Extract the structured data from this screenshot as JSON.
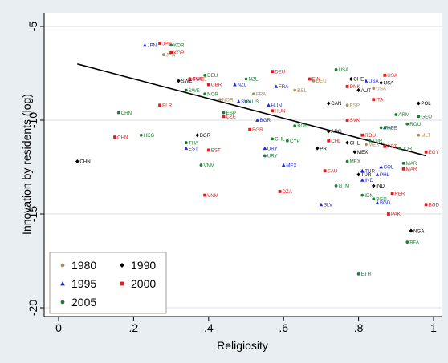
{
  "chart_data": {
    "type": "scatter",
    "xlabel": "Religiosity",
    "ylabel": "Innovation by residents (log)",
    "xlim": [
      0,
      1
    ],
    "ylim": [
      -20,
      -5
    ],
    "xticks": [
      0,
      0.2,
      0.4,
      0.6,
      0.8,
      1
    ],
    "xtick_labels": [
      "0",
      ".2",
      ".4",
      ".6",
      ".8",
      "1"
    ],
    "yticks": [
      -5,
      -10,
      -15,
      -20
    ],
    "ytick_labels": [
      "-5",
      "-10",
      "-15",
      "-20"
    ],
    "grid": "horizontal",
    "legend_position": "bottom-left",
    "fit_line": {
      "x": [
        0.05,
        0.98
      ],
      "y": [
        -7.0,
        -11.9
      ]
    },
    "series": [
      {
        "name": "1980",
        "color": "#a89060",
        "marker": "dot",
        "points": [
          {
            "label": "JPN",
            "x": 0.28,
            "y": -6.5
          },
          {
            "label": "CHE",
            "x": 0.36,
            "y": -7.8
          },
          {
            "label": "NOR",
            "x": 0.43,
            "y": -8.9
          },
          {
            "label": "DEU",
            "x": 0.68,
            "y": -7.9
          },
          {
            "label": "FRA",
            "x": 0.52,
            "y": -8.6
          },
          {
            "label": "USA",
            "x": 0.84,
            "y": -8.3
          },
          {
            "label": "MEX",
            "x": 0.82,
            "y": -11.3
          },
          {
            "label": "MLT",
            "x": 0.96,
            "y": -10.8
          },
          {
            "label": "ESP",
            "x": 0.77,
            "y": -9.2
          },
          {
            "label": "BEL",
            "x": 0.63,
            "y": -8.4
          }
        ]
      },
      {
        "name": "1990",
        "color": "#000000",
        "marker": "diamond",
        "points": [
          {
            "label": "CHN",
            "x": 0.05,
            "y": -12.2
          },
          {
            "label": "SWE",
            "x": 0.32,
            "y": -7.9
          },
          {
            "label": "BGR",
            "x": 0.37,
            "y": -10.8
          },
          {
            "label": "CHE",
            "x": 0.78,
            "y": -7.8
          },
          {
            "label": "USA",
            "x": 0.86,
            "y": -8.0
          },
          {
            "label": "CAN",
            "x": 0.72,
            "y": -9.1
          },
          {
            "label": "AUT",
            "x": 0.8,
            "y": -8.4
          },
          {
            "label": "ARG",
            "x": 0.72,
            "y": -10.6
          },
          {
            "label": "PRT",
            "x": 0.69,
            "y": -11.5
          },
          {
            "label": "POL",
            "x": 0.96,
            "y": -9.1
          },
          {
            "label": "TUR",
            "x": 0.8,
            "y": -12.9
          },
          {
            "label": "IND",
            "x": 0.84,
            "y": -13.5
          },
          {
            "label": "NGA",
            "x": 0.94,
            "y": -15.9
          },
          {
            "label": "CHL",
            "x": 0.77,
            "y": -11.2
          },
          {
            "label": "MEX",
            "x": 0.79,
            "y": -11.7
          }
        ]
      },
      {
        "name": "1995",
        "color": "#1f2bd8",
        "marker": "triangle",
        "points": [
          {
            "label": "JPN",
            "x": 0.23,
            "y": -6.0
          },
          {
            "label": "EST",
            "x": 0.34,
            "y": -11.5
          },
          {
            "label": "SWE",
            "x": 0.35,
            "y": -7.8
          },
          {
            "label": "NZL",
            "x": 0.47,
            "y": -8.1
          },
          {
            "label": "SVN",
            "x": 0.48,
            "y": -9.0
          },
          {
            "label": "BGR",
            "x": 0.53,
            "y": -10.0
          },
          {
            "label": "URY",
            "x": 0.55,
            "y": -11.5
          },
          {
            "label": "HUN",
            "x": 0.56,
            "y": -9.2
          },
          {
            "label": "FRA",
            "x": 0.58,
            "y": -8.2
          },
          {
            "label": "MEX",
            "x": 0.6,
            "y": -12.4
          },
          {
            "label": "USA",
            "x": 0.82,
            "y": -7.9
          },
          {
            "label": "TUR",
            "x": 0.81,
            "y": -12.7
          },
          {
            "label": "PHL",
            "x": 0.85,
            "y": -12.9
          },
          {
            "label": "COL",
            "x": 0.86,
            "y": -12.5
          },
          {
            "label": "SLV",
            "x": 0.7,
            "y": -14.5
          },
          {
            "label": "BGD",
            "x": 0.85,
            "y": -14.4
          },
          {
            "label": "AZE",
            "x": 0.87,
            "y": -10.4
          },
          {
            "label": "IND",
            "x": 0.81,
            "y": -13.2
          }
        ]
      },
      {
        "name": "2000",
        "color": "#e01b1b",
        "marker": "square",
        "points": [
          {
            "label": "CHN",
            "x": 0.15,
            "y": -10.9
          },
          {
            "label": "JPN",
            "x": 0.27,
            "y": -5.9
          },
          {
            "label": "KOR",
            "x": 0.3,
            "y": -6.4
          },
          {
            "label": "BLR",
            "x": 0.27,
            "y": -9.2
          },
          {
            "label": "SWE",
            "x": 0.35,
            "y": -7.8
          },
          {
            "label": "EST",
            "x": 0.4,
            "y": -11.6
          },
          {
            "label": "VNM",
            "x": 0.39,
            "y": -14.0
          },
          {
            "label": "GBR",
            "x": 0.4,
            "y": -8.1
          },
          {
            "label": "CZE",
            "x": 0.44,
            "y": -9.8
          },
          {
            "label": "BGR",
            "x": 0.51,
            "y": -10.5
          },
          {
            "label": "DEU",
            "x": 0.57,
            "y": -7.4
          },
          {
            "label": "HUN",
            "x": 0.57,
            "y": -9.5
          },
          {
            "label": "DZA",
            "x": 0.59,
            "y": -13.8
          },
          {
            "label": "FIN",
            "x": 0.67,
            "y": -7.8
          },
          {
            "label": "SAU",
            "x": 0.71,
            "y": -12.7
          },
          {
            "label": "CHL",
            "x": 0.72,
            "y": -11.1
          },
          {
            "label": "USA",
            "x": 0.87,
            "y": -7.6
          },
          {
            "label": "DNK",
            "x": 0.77,
            "y": -8.2
          },
          {
            "label": "ITA",
            "x": 0.84,
            "y": -8.9
          },
          {
            "label": "SVK",
            "x": 0.77,
            "y": -10.0
          },
          {
            "label": "PER",
            "x": 0.89,
            "y": -13.9
          },
          {
            "label": "PAK",
            "x": 0.88,
            "y": -15.0
          },
          {
            "label": "MAR",
            "x": 0.92,
            "y": -12.6
          },
          {
            "label": "PRT",
            "x": 0.87,
            "y": -11.4
          },
          {
            "label": "BGD",
            "x": 0.98,
            "y": -14.5
          },
          {
            "label": "EGY",
            "x": 0.98,
            "y": -11.7
          },
          {
            "label": "ROU",
            "x": 0.81,
            "y": -10.8
          }
        ]
      },
      {
        "name": "2005",
        "color": "#1a7f32",
        "marker": "dot",
        "points": [
          {
            "label": "KOR",
            "x": 0.3,
            "y": -6.0
          },
          {
            "label": "CHN",
            "x": 0.16,
            "y": -9.6
          },
          {
            "label": "HKG",
            "x": 0.22,
            "y": -10.8
          },
          {
            "label": "THA",
            "x": 0.34,
            "y": -11.2
          },
          {
            "label": "SWE",
            "x": 0.34,
            "y": -8.4
          },
          {
            "label": "DEU",
            "x": 0.39,
            "y": -7.6
          },
          {
            "label": "NOR",
            "x": 0.39,
            "y": -8.6
          },
          {
            "label": "VNM",
            "x": 0.38,
            "y": -12.4
          },
          {
            "label": "ESP",
            "x": 0.44,
            "y": -9.6
          },
          {
            "label": "NZL",
            "x": 0.5,
            "y": -7.8
          },
          {
            "label": "AUS",
            "x": 0.5,
            "y": -9.0
          },
          {
            "label": "URY",
            "x": 0.55,
            "y": -11.9
          },
          {
            "label": "CHL",
            "x": 0.57,
            "y": -11.0
          },
          {
            "label": "BGR",
            "x": 0.63,
            "y": -10.3
          },
          {
            "label": "CYP",
            "x": 0.61,
            "y": -11.1
          },
          {
            "label": "USA",
            "x": 0.74,
            "y": -7.3
          },
          {
            "label": "GTM",
            "x": 0.74,
            "y": -13.5
          },
          {
            "label": "MEX",
            "x": 0.77,
            "y": -12.2
          },
          {
            "label": "TUR",
            "x": 0.83,
            "y": -11.1
          },
          {
            "label": "JOR",
            "x": 0.91,
            "y": -11.5
          },
          {
            "label": "MAR",
            "x": 0.92,
            "y": -12.3
          },
          {
            "label": "BFA",
            "x": 0.93,
            "y": -16.5
          },
          {
            "label": "ETH",
            "x": 0.8,
            "y": -18.2
          },
          {
            "label": "IRN",
            "x": 0.86,
            "y": -10.4
          },
          {
            "label": "GEO",
            "x": 0.96,
            "y": -9.8
          },
          {
            "label": "IDN",
            "x": 0.81,
            "y": -14.0
          },
          {
            "label": "BGD",
            "x": 0.84,
            "y": -14.2
          },
          {
            "label": "ROU",
            "x": 0.93,
            "y": -10.2
          },
          {
            "label": "ARM",
            "x": 0.9,
            "y": -9.7
          }
        ]
      }
    ]
  }
}
